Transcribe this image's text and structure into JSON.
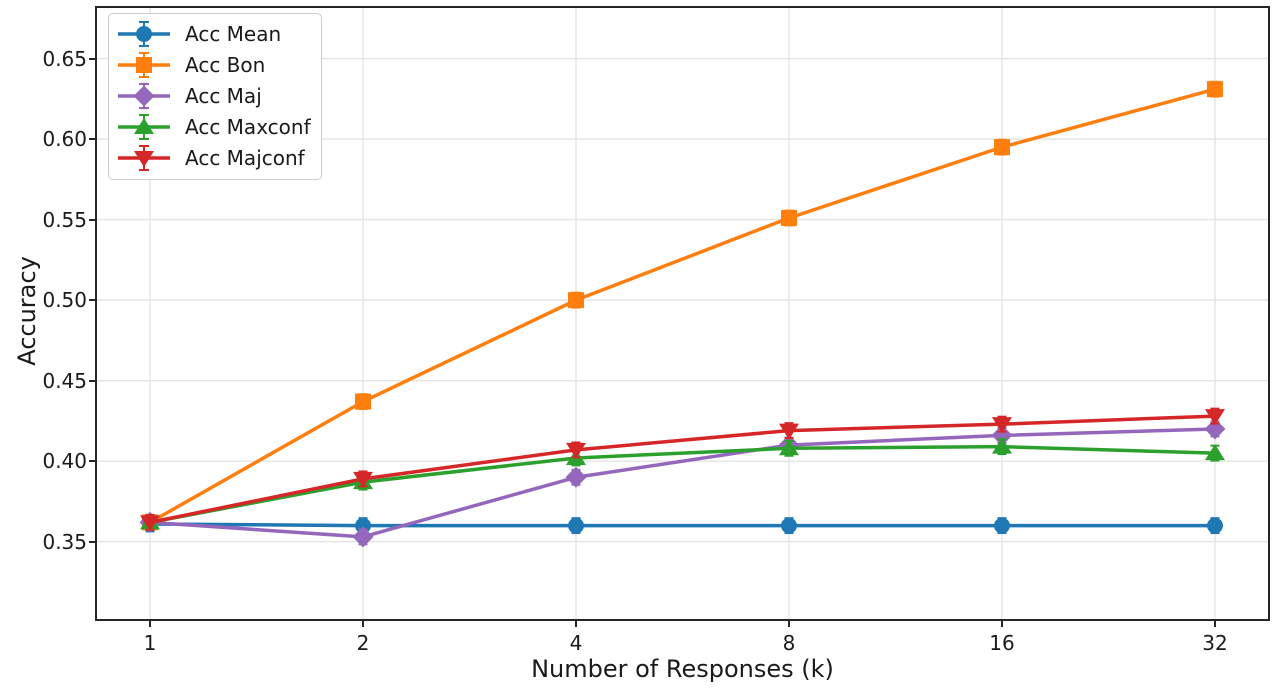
{
  "chart_data": {
    "type": "line",
    "title": "",
    "xlabel": "Number of Responses (k)",
    "ylabel": "Accuracy",
    "x": [
      1,
      2,
      4,
      8,
      16,
      32
    ],
    "x_scale": "log2",
    "xticks": [
      "1",
      "2",
      "4",
      "8",
      "16",
      "32"
    ],
    "yticks": [
      "0.35",
      "0.40",
      "0.45",
      "0.50",
      "0.55",
      "0.60",
      "0.65"
    ],
    "xlim_log2": [
      -0.249,
      5.249
    ],
    "ylim": [
      0.302,
      0.6814
    ],
    "grid": true,
    "legend_position": "upper left",
    "error_bars": {
      "visible": true,
      "approx_value": 0.004
    },
    "series": [
      {
        "name": "Acc Mean",
        "color": "#1f77b4",
        "marker": "circle",
        "values": [
          0.361,
          0.36,
          0.36,
          0.36,
          0.36,
          0.36
        ]
      },
      {
        "name": "Acc Bon",
        "color": "#ff7f0e",
        "marker": "square",
        "values": [
          0.362,
          0.437,
          0.5,
          0.551,
          0.595,
          0.631
        ]
      },
      {
        "name": "Acc Maj",
        "color": "#9467bd",
        "marker": "diamond",
        "values": [
          0.362,
          0.353,
          0.39,
          0.41,
          0.416,
          0.42
        ]
      },
      {
        "name": "Acc Maxconf",
        "color": "#2ca02c",
        "marker": "triangle-up",
        "values": [
          0.362,
          0.387,
          0.402,
          0.408,
          0.409,
          0.405
        ]
      },
      {
        "name": "Acc Majconf",
        "color": "#d62728",
        "marker": "triangle-down",
        "values": [
          0.362,
          0.389,
          0.407,
          0.419,
          0.423,
          0.428
        ]
      }
    ]
  },
  "colors": {
    "background": "#ffffff",
    "spine": "#262626",
    "grid": "#e4e4e4",
    "text": "#1a1a1a",
    "legend_border": "#cccccc"
  }
}
